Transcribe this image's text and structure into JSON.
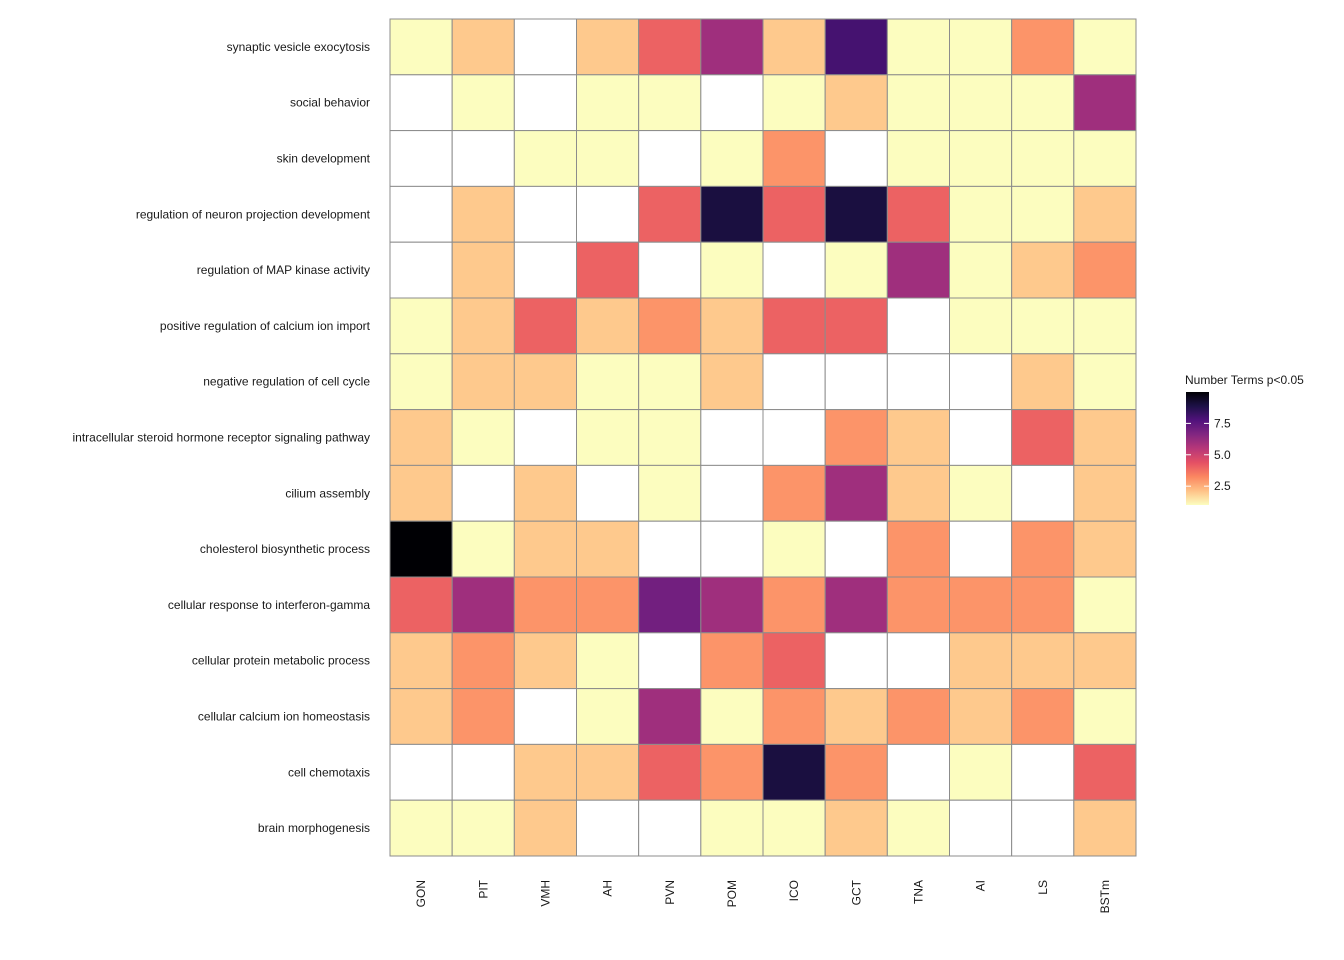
{
  "chart_data": {
    "type": "heatmap",
    "title": "",
    "xlabel": "",
    "ylabel": "",
    "grid": false,
    "legend_position": "right",
    "columns": [
      "GON",
      "PIT",
      "VMH",
      "AH",
      "PVN",
      "POM",
      "ICO",
      "GCT",
      "TNA",
      "AI",
      "LS",
      "BSTm"
    ],
    "rows": [
      "synaptic vesicle exocytosis",
      "social behavior",
      "skin development",
      "regulation of neuron projection development",
      "regulation of MAP kinase activity",
      "positive regulation of calcium ion import",
      "negative regulation of cell cycle",
      "intracellular steroid hormone receptor signaling pathway",
      "cilium assembly",
      "cholesterol biosynthetic process",
      "cellular response to interferon-gamma",
      "cellular protein metabolic process",
      "cellular calcium ion homeostasis",
      "cell chemotaxis",
      "brain morphogenesis"
    ],
    "values": [
      [
        1,
        2,
        null,
        2,
        4,
        6,
        2,
        8,
        1,
        1,
        3,
        1
      ],
      [
        null,
        1,
        null,
        1,
        1,
        null,
        1,
        2,
        1,
        1,
        1,
        6
      ],
      [
        null,
        null,
        1,
        1,
        null,
        1,
        3,
        null,
        1,
        1,
        1,
        1
      ],
      [
        null,
        2,
        null,
        null,
        4,
        9,
        4,
        9,
        4,
        1,
        1,
        2
      ],
      [
        null,
        2,
        null,
        4,
        null,
        1,
        null,
        1,
        6,
        1,
        2,
        3
      ],
      [
        1,
        2,
        4,
        2,
        3,
        2,
        4,
        4,
        null,
        1,
        1,
        1
      ],
      [
        1,
        2,
        2,
        1,
        1,
        2,
        null,
        null,
        null,
        null,
        2,
        1
      ],
      [
        2,
        1,
        null,
        1,
        1,
        null,
        null,
        3,
        2,
        null,
        4,
        2
      ],
      [
        2,
        null,
        2,
        null,
        1,
        null,
        3,
        6,
        2,
        1,
        null,
        2
      ],
      [
        10,
        1,
        2,
        2,
        null,
        null,
        1,
        null,
        3,
        null,
        3,
        2
      ],
      [
        4,
        6,
        3,
        3,
        7,
        6,
        3,
        6,
        3,
        3,
        3,
        1
      ],
      [
        2,
        3,
        2,
        1,
        null,
        3,
        4,
        null,
        null,
        2,
        2,
        2
      ],
      [
        2,
        3,
        null,
        1,
        6,
        1,
        3,
        2,
        3,
        2,
        3,
        1
      ],
      [
        null,
        null,
        2,
        2,
        4,
        3,
        9,
        3,
        null,
        1,
        null,
        4
      ],
      [
        1,
        1,
        2,
        null,
        null,
        1,
        1,
        2,
        1,
        null,
        null,
        2
      ]
    ],
    "color_scale": {
      "name": "magma (reversed)",
      "min": 1,
      "max": 10,
      "stops": [
        "#fcfdbf",
        "#fec287",
        "#fb8761",
        "#e55064",
        "#b73779",
        "#822681",
        "#51127c",
        "#1d1147",
        "#000004"
      ],
      "na_color": "#ffffff"
    },
    "legend": {
      "title": "Number Terms p<0.05",
      "ticks": [
        2.5,
        5.0,
        7.5
      ],
      "tick_labels": [
        "2.5",
        "5.0",
        "7.5"
      ]
    }
  }
}
